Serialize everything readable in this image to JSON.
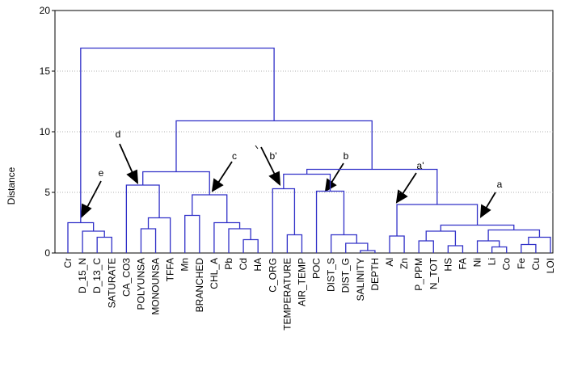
{
  "chart_data": {
    "type": "dendrogram",
    "ylabel": "Distance",
    "ylim": [
      0,
      20
    ],
    "yticks": [
      0,
      5,
      10,
      15,
      20
    ],
    "grid": true,
    "color": "#3030c8",
    "categories": [
      "Cr",
      "D_15_N",
      "D_13_C",
      "SATURATE",
      "CA_CO3",
      "POLYUNSA",
      "MONOUNSA",
      "TFFA",
      "Mn",
      "BRANCHED",
      "CHL_A",
      "Pb",
      "Cd",
      "HA",
      "C_ORG",
      "TEMPERATURE",
      "AIR_TEMP",
      "POC",
      "DIST_S",
      "DIST_G",
      "SALINITY",
      "DEPTH",
      "Al",
      "Zn",
      "P_PPM",
      "N_TOT",
      "HS",
      "FA",
      "Ni",
      "Li",
      "Co",
      "Fe",
      "Cu",
      "LOI"
    ],
    "links": [
      {
        "children": [
          2,
          3
        ],
        "height": 1.3
      },
      {
        "children": [
          1,
          34
        ],
        "height": 1.8
      },
      {
        "children": [
          0,
          35
        ],
        "height": 2.5
      },
      {
        "children": [
          5,
          6
        ],
        "height": 2.0
      },
      {
        "children": [
          37,
          7
        ],
        "height": 2.9
      },
      {
        "children": [
          4,
          38
        ],
        "height": 5.6
      },
      {
        "children": [
          8,
          9
        ],
        "height": 3.1
      },
      {
        "children": [
          12,
          13
        ],
        "height": 1.1
      },
      {
        "children": [
          11,
          41
        ],
        "height": 2.0
      },
      {
        "children": [
          10,
          42
        ],
        "height": 2.5
      },
      {
        "children": [
          40,
          43
        ],
        "height": 4.8
      },
      {
        "children": [
          39,
          44
        ],
        "height": 6.7
      },
      {
        "children": [
          15,
          16
        ],
        "height": 1.5
      },
      {
        "children": [
          14,
          46
        ],
        "height": 5.3
      },
      {
        "children": [
          20,
          21
        ],
        "height": 0.2
      },
      {
        "children": [
          19,
          48
        ],
        "height": 0.8
      },
      {
        "children": [
          18,
          49
        ],
        "height": 1.5
      },
      {
        "children": [
          17,
          50
        ],
        "height": 5.1
      },
      {
        "children": [
          47,
          51
        ],
        "height": 6.5
      },
      {
        "children": [
          22,
          23
        ],
        "height": 1.4
      },
      {
        "children": [
          24,
          25
        ],
        "height": 1.0
      },
      {
        "children": [
          26,
          27
        ],
        "height": 0.6
      },
      {
        "children": [
          54,
          55
        ],
        "height": 1.8
      },
      {
        "children": [
          29,
          30
        ],
        "height": 0.5
      },
      {
        "children": [
          28,
          57
        ],
        "height": 1.0
      },
      {
        "children": [
          31,
          32
        ],
        "height": 0.7
      },
      {
        "children": [
          59,
          33
        ],
        "height": 1.3
      },
      {
        "children": [
          58,
          60
        ],
        "height": 1.9
      },
      {
        "children": [
          56,
          61
        ],
        "height": 2.3
      },
      {
        "children": [
          53,
          62
        ],
        "height": 4.0
      },
      {
        "children": [
          52,
          63
        ],
        "height": 6.9
      },
      {
        "children": [
          45,
          64
        ],
        "height": 10.9
      },
      {
        "children": [
          36,
          65
        ],
        "height": 16.9
      }
    ],
    "annotations": [
      "e",
      "d",
      "c",
      "b'",
      "b",
      "a'",
      "a"
    ]
  }
}
